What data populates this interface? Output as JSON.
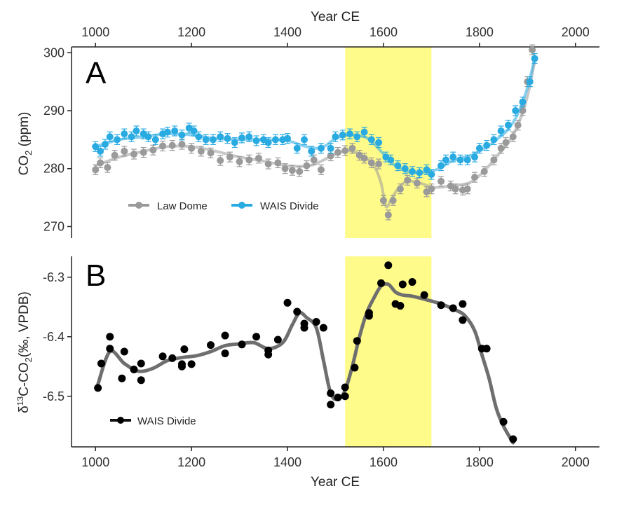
{
  "chart_data": [
    {
      "panel": "A",
      "type": "line",
      "ylabel": "CO2 (ppm)",
      "xlabel_top": "Year CE",
      "xlim": [
        950,
        2050
      ],
      "ylim": [
        268,
        301
      ],
      "x_ticks": [
        "1000",
        "1200",
        "1400",
        "1600",
        "1800",
        "2000"
      ],
      "y_ticks": [
        "270",
        "280",
        "290",
        "300"
      ],
      "highlight": {
        "x_range": [
          1520,
          1700
        ],
        "color": "#fffb8a"
      },
      "legend_placement": "bottom-left",
      "series": [
        {
          "name": "Law Dome",
          "color": "#9a9a9a",
          "x": [
            1000,
            1010,
            1025,
            1040,
            1060,
            1080,
            1100,
            1120,
            1140,
            1160,
            1180,
            1200,
            1220,
            1240,
            1260,
            1280,
            1300,
            1320,
            1340,
            1360,
            1380,
            1395,
            1410,
            1425,
            1440,
            1455,
            1470,
            1490,
            1505,
            1520,
            1535,
            1550,
            1560,
            1575,
            1590,
            1600,
            1610,
            1620,
            1635,
            1650,
            1670,
            1690,
            1700,
            1720,
            1740,
            1750,
            1765,
            1775,
            1790,
            1810,
            1830,
            1845,
            1855,
            1870,
            1880,
            1890,
            1900,
            1910
          ],
          "y": [
            279.8,
            281.0,
            280.2,
            282.3,
            283.0,
            282.5,
            282.8,
            283.2,
            283.9,
            284.0,
            284.2,
            283.5,
            283.0,
            282.7,
            281.4,
            282.0,
            281.2,
            281.5,
            281.8,
            280.8,
            281.0,
            280.0,
            279.7,
            279.5,
            280.5,
            281.5,
            279.8,
            282.2,
            282.8,
            283.1,
            283.5,
            282.3,
            281.8,
            281.0,
            280.8,
            274.5,
            272.0,
            274.5,
            276.5,
            278.0,
            277.5,
            276.0,
            276.5,
            277.8,
            277.0,
            276.5,
            276.3,
            276.5,
            278.5,
            279.5,
            281.5,
            283.5,
            284.5,
            285.5,
            287.5,
            290.0,
            295.0,
            300.5
          ],
          "smooth_x": [
            1000,
            1050,
            1100,
            1150,
            1200,
            1250,
            1300,
            1350,
            1400,
            1450,
            1500,
            1530,
            1560,
            1580,
            1595,
            1605,
            1615,
            1630,
            1650,
            1680,
            1700,
            1720,
            1740,
            1760,
            1780,
            1800,
            1820,
            1840,
            1860,
            1880,
            1900,
            1915
          ],
          "smooth_y": [
            280.5,
            282.0,
            283.0,
            283.8,
            283.8,
            283.0,
            282.0,
            281.3,
            280.5,
            280.6,
            282.5,
            283.1,
            282.0,
            280.5,
            277.5,
            273.5,
            274.5,
            276.5,
            277.8,
            277.4,
            276.8,
            276.8,
            277.0,
            277.2,
            277.6,
            278.8,
            280.5,
            282.5,
            284.5,
            287.5,
            292.5,
            298.5
          ]
        },
        {
          "name": "WAIS Divide",
          "color": "#29abe2",
          "x": [
            1000,
            1010,
            1020,
            1030,
            1045,
            1060,
            1075,
            1085,
            1100,
            1110,
            1125,
            1140,
            1150,
            1165,
            1180,
            1195,
            1205,
            1215,
            1230,
            1245,
            1260,
            1275,
            1290,
            1305,
            1320,
            1335,
            1350,
            1360,
            1375,
            1390,
            1400,
            1420,
            1435,
            1450,
            1470,
            1490,
            1500,
            1515,
            1530,
            1545,
            1560,
            1575,
            1590,
            1605,
            1615,
            1630,
            1645,
            1660,
            1675,
            1690,
            1700,
            1720,
            1730,
            1745,
            1760,
            1775,
            1790,
            1800,
            1815,
            1830,
            1845,
            1860,
            1875,
            1890,
            1905,
            1915
          ],
          "y": [
            283.8,
            283.0,
            284.2,
            285.5,
            285.0,
            286.0,
            285.5,
            286.5,
            286.0,
            285.5,
            285.0,
            286.0,
            286.3,
            286.5,
            285.8,
            287.0,
            286.5,
            285.5,
            285.0,
            285.0,
            285.5,
            285.2,
            284.5,
            285.3,
            285.5,
            284.8,
            285.0,
            284.5,
            285.0,
            285.0,
            285.2,
            283.5,
            285.0,
            283.0,
            283.5,
            283.5,
            285.5,
            285.8,
            286.0,
            285.5,
            286.3,
            285.0,
            284.5,
            282.0,
            281.5,
            280.5,
            280.0,
            279.5,
            279.3,
            279.8,
            279.0,
            280.5,
            281.5,
            282.0,
            281.5,
            281.5,
            282.0,
            283.5,
            284.0,
            285.0,
            286.5,
            287.5,
            290.0,
            291.5,
            295.0,
            299.0
          ],
          "smooth_x": [
            1000,
            1050,
            1100,
            1150,
            1200,
            1250,
            1300,
            1350,
            1400,
            1430,
            1460,
            1480,
            1500,
            1530,
            1560,
            1580,
            1600,
            1620,
            1640,
            1660,
            1680,
            1700,
            1720,
            1740,
            1760,
            1780,
            1800,
            1820,
            1840,
            1860,
            1880,
            1900,
            1915
          ],
          "smooth_y": [
            283.8,
            285.0,
            285.5,
            286.0,
            285.8,
            285.2,
            285.0,
            285.0,
            284.8,
            284.0,
            283.5,
            284.0,
            285.2,
            285.8,
            285.5,
            284.3,
            282.5,
            280.8,
            279.8,
            279.3,
            279.3,
            279.5,
            280.2,
            281.2,
            281.8,
            282.2,
            283.0,
            284.0,
            285.3,
            286.8,
            289.5,
            294.0,
            299.0
          ]
        }
      ]
    },
    {
      "panel": "B",
      "type": "line",
      "ylabel": "δ13C-CO2(‰, VPDB)",
      "xlabel": "Year CE",
      "xlim": [
        950,
        2050
      ],
      "ylim": [
        -6.585,
        -6.265
      ],
      "x_ticks": [
        "1000",
        "1200",
        "1400",
        "1600",
        "1800",
        "2000"
      ],
      "y_ticks": [
        "-6.3",
        "-6.4",
        "-6.5"
      ],
      "highlight": {
        "x_range": [
          1520,
          1700
        ],
        "color": "#fffb8a"
      },
      "legend_placement": "bottom-left",
      "series": [
        {
          "name": "WAIS Divide",
          "color": "#000000",
          "smooth_color": "#6f6f6f",
          "x": [
            1005,
            1012,
            1030,
            1030,
            1055,
            1060,
            1080,
            1095,
            1095,
            1140,
            1160,
            1180,
            1180,
            1185,
            1200,
            1240,
            1270,
            1270,
            1305,
            1335,
            1360,
            1360,
            1380,
            1400,
            1420,
            1435,
            1435,
            1460,
            1475,
            1490,
            1490,
            1505,
            1520,
            1520,
            1540,
            1545,
            1570,
            1570,
            1595,
            1610,
            1625,
            1635,
            1640,
            1660,
            1685,
            1720,
            1745,
            1765,
            1765,
            1805,
            1815,
            1850,
            1870
          ],
          "y": [
            -6.486,
            -6.445,
            -6.4,
            -6.42,
            -6.47,
            -6.425,
            -6.455,
            -6.445,
            -6.473,
            -6.433,
            -6.436,
            -6.446,
            -6.45,
            -6.421,
            -6.446,
            -6.414,
            -6.398,
            -6.428,
            -6.413,
            -6.4,
            -6.423,
            -6.43,
            -6.405,
            -6.343,
            -6.358,
            -6.378,
            -6.385,
            -6.375,
            -6.385,
            -6.495,
            -6.514,
            -6.502,
            -6.5,
            -6.485,
            -6.452,
            -6.407,
            -6.365,
            -6.36,
            -6.31,
            -6.28,
            -6.345,
            -6.348,
            -6.312,
            -6.308,
            -6.33,
            -6.347,
            -6.352,
            -6.345,
            -6.372,
            -6.42,
            -6.42,
            -6.543,
            -6.572
          ],
          "smooth_x": [
            1005,
            1030,
            1060,
            1090,
            1120,
            1150,
            1180,
            1210,
            1240,
            1270,
            1300,
            1330,
            1360,
            1390,
            1410,
            1425,
            1440,
            1460,
            1475,
            1490,
            1505,
            1520,
            1535,
            1550,
            1565,
            1580,
            1595,
            1610,
            1625,
            1640,
            1660,
            1690,
            1720,
            1750,
            1770,
            1790,
            1805,
            1820,
            1835,
            1850,
            1870
          ],
          "smooth_y": [
            -6.48,
            -6.425,
            -6.445,
            -6.458,
            -6.453,
            -6.44,
            -6.435,
            -6.432,
            -6.425,
            -6.415,
            -6.412,
            -6.41,
            -6.42,
            -6.41,
            -6.38,
            -6.36,
            -6.368,
            -6.385,
            -6.44,
            -6.495,
            -6.505,
            -6.49,
            -6.45,
            -6.4,
            -6.36,
            -6.335,
            -6.315,
            -6.312,
            -6.325,
            -6.33,
            -6.332,
            -6.338,
            -6.345,
            -6.355,
            -6.365,
            -6.39,
            -6.43,
            -6.47,
            -6.52,
            -6.55,
            -6.578
          ]
        }
      ]
    }
  ],
  "axes": {
    "top_xlabel": "Year CE",
    "bottom_xlabel": "Year CE",
    "panelA_ylabel_main": "CO",
    "panelA_ylabel_sub": "2",
    "panelA_ylabel_unit": " (ppm)",
    "panelB_ylabel_delta": "δ",
    "panelB_ylabel_sup": "13",
    "panelB_ylabel_mid": "C-CO",
    "panelB_ylabel_sub": "2",
    "panelB_ylabel_unit": "(‰, VPDB)"
  },
  "panel_labels": {
    "a": "A",
    "b": "B"
  },
  "legend": {
    "law_dome": "Law Dome",
    "wais_a": "WAIS Divide",
    "wais_b": "WAIS Divide"
  }
}
